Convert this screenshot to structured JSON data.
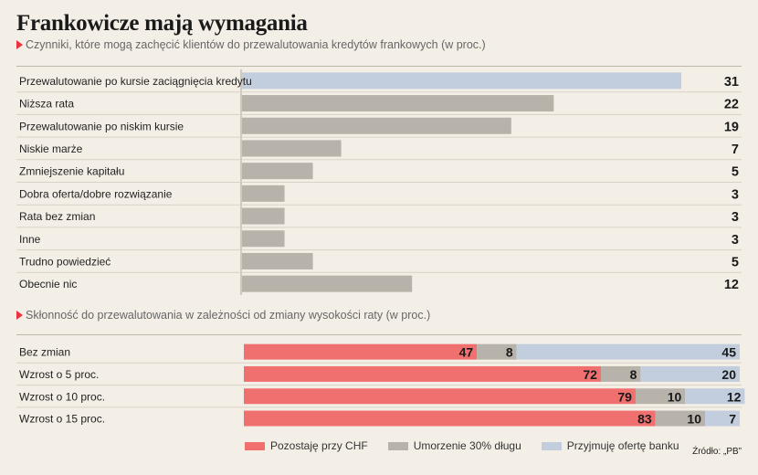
{
  "header": {
    "title": "Frankowicze mają wymagania"
  },
  "chart_data": [
    {
      "type": "bar",
      "title": "Czynniki, które mogą zachęcić klientów do przewalutowania kredytów frankowych (w proc.)",
      "categories": [
        "Przewalutowanie po kursie zaciągnięcia kredytu",
        "Niższa rata",
        "Przewalutowanie po niskim kursie",
        "Niskie marże",
        "Zmniejszenie kapitału",
        "Dobra oferta/dobre rozwiązanie",
        "Rata bez zmian",
        "Inne",
        "Trudno powiedzieć",
        "Obecnie nic"
      ],
      "values": [
        31,
        22,
        19,
        7,
        5,
        3,
        3,
        3,
        5,
        12
      ],
      "colors": [
        "#c2cedd",
        "#b7b2aa",
        "#b7b2aa",
        "#b7b2aa",
        "#b7b2aa",
        "#b7b2aa",
        "#b7b2aa",
        "#b7b2aa",
        "#b7b2aa",
        "#b7b2aa"
      ],
      "orientation": "horizontal",
      "xlim": [
        0,
        31
      ]
    },
    {
      "type": "bar",
      "stacked": true,
      "orientation": "horizontal",
      "title": "Skłonność do przewalutowania w zależności od zmiany wysokości raty (w proc.)",
      "categories": [
        "Bez zmian",
        "Wzrost o 5 proc.",
        "Wzrost o 10 proc.",
        "Wzrost o 15 proc."
      ],
      "series": [
        {
          "name": "Pozostaję przy CHF",
          "color": "#f07070",
          "values": [
            47,
            72,
            79,
            83
          ]
        },
        {
          "name": "Umorzenie 30% długu",
          "color": "#b7b2aa",
          "values": [
            8,
            8,
            10,
            10
          ]
        },
        {
          "name": "Przyjmuję ofertę banku",
          "color": "#c2cedd",
          "values": [
            45,
            20,
            12,
            7
          ]
        }
      ],
      "xlim": [
        0,
        100
      ],
      "legend": "bottom"
    }
  ],
  "source": "Źródło: „PB”"
}
